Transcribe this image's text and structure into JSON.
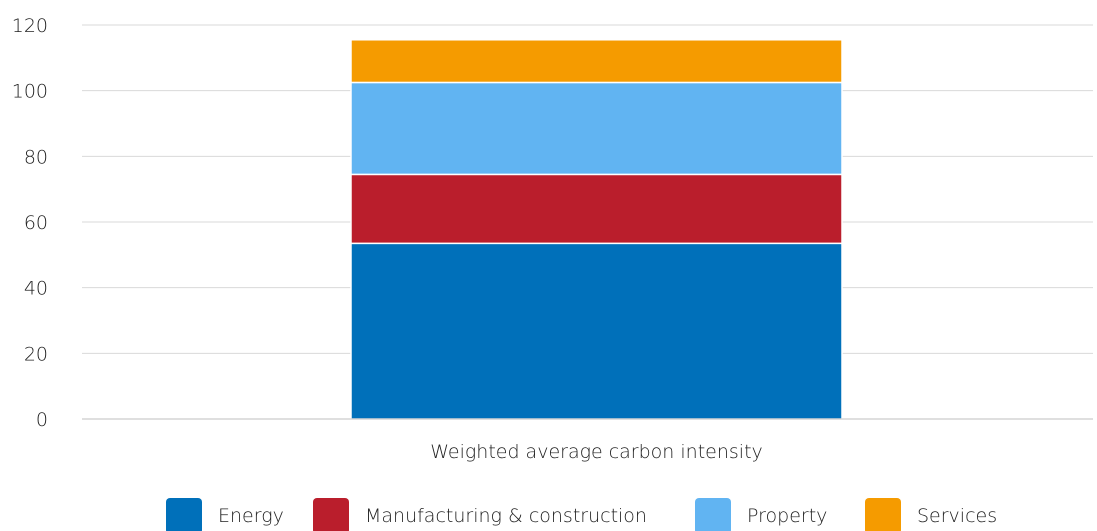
{
  "chart_data": {
    "type": "bar",
    "stacked": true,
    "title": "",
    "xlabel": "",
    "ylabel": "",
    "categories": [
      "Weighted average carbon intensity"
    ],
    "series": [
      {
        "name": "Energy",
        "values": [
          53.5
        ],
        "color": "#0070BA"
      },
      {
        "name": "Manufacturing & construction",
        "values": [
          21
        ],
        "color": "#BA1E2C"
      },
      {
        "name": "Property",
        "values": [
          28
        ],
        "color": "#61B4F2"
      },
      {
        "name": "Services",
        "values": [
          13
        ],
        "color": "#F59B00"
      }
    ],
    "ylim": [
      0,
      120
    ],
    "yticks": [
      "0",
      "20",
      "40",
      "60",
      "80",
      "100",
      "120"
    ],
    "grid": true,
    "legend": "bottom"
  }
}
